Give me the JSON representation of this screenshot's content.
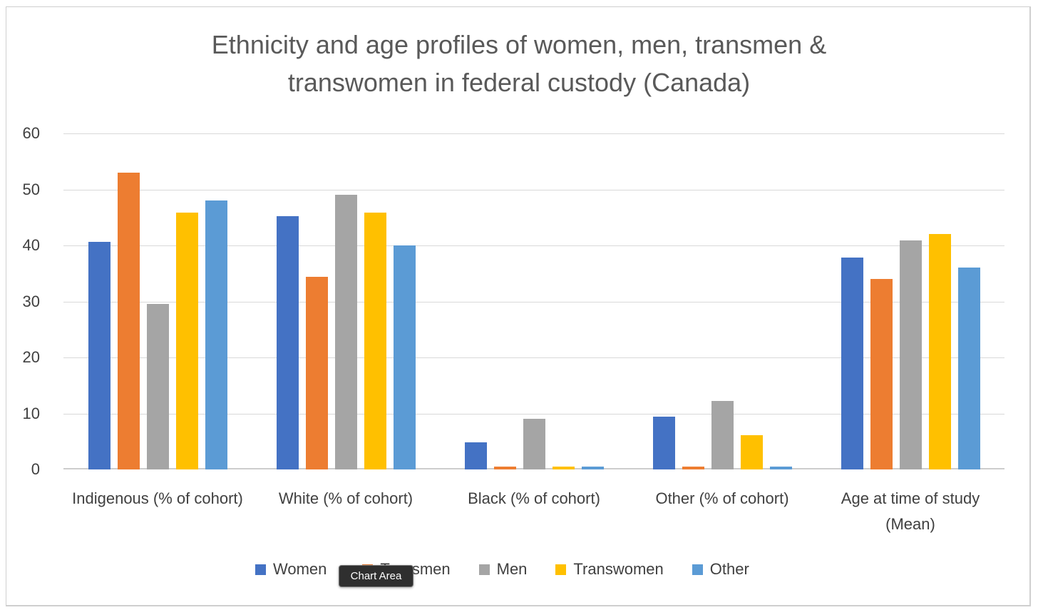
{
  "tooltip": {
    "label": "Chart Area"
  },
  "colors": {
    "title_text": "#595959",
    "axis_text": "#404040",
    "gridline": "#d9d9d9",
    "axis_line": "#cdcdcd",
    "chart_border": "#cfcfcf",
    "tooltip_bg": "#2f2f2f",
    "tooltip_text": "#ffffff"
  },
  "chart_data": {
    "type": "bar",
    "title": "Ethnicity and age profiles of women, men, transmen & transwomen in federal custody (Canada)",
    "title_lines": [
      "Ethnicity and age profiles of women, men, transmen &",
      "transwomen in federal custody (Canada)"
    ],
    "categories": [
      "Indigenous (% of cohort)",
      "White (% of cohort)",
      "Black (% of cohort)",
      "Other (% of cohort)",
      "Age at time of study (Mean)"
    ],
    "series": [
      {
        "name": "Women",
        "color": "#4472C4",
        "values": [
          40.6,
          45.2,
          4.8,
          9.4,
          37.9
        ]
      },
      {
        "name": "Transmen",
        "color": "#ED7D31",
        "values": [
          53,
          34.4,
          0.5,
          0.5,
          34
        ]
      },
      {
        "name": "Men",
        "color": "#A5A5A5",
        "values": [
          29.5,
          49,
          9,
          12.2,
          40.9
        ]
      },
      {
        "name": "Transwomen",
        "color": "#FFC000",
        "values": [
          45.9,
          45.9,
          0.5,
          6.1,
          42
        ]
      },
      {
        "name": "Other",
        "color": "#5B9BD5",
        "values": [
          48,
          40,
          0.5,
          0.5,
          36
        ]
      }
    ],
    "xlabel": "",
    "ylabel": "",
    "ylim": [
      0,
      60
    ],
    "yticks": [
      0,
      10,
      20,
      30,
      40,
      50,
      60
    ],
    "grid": true,
    "legend_position": "bottom"
  }
}
